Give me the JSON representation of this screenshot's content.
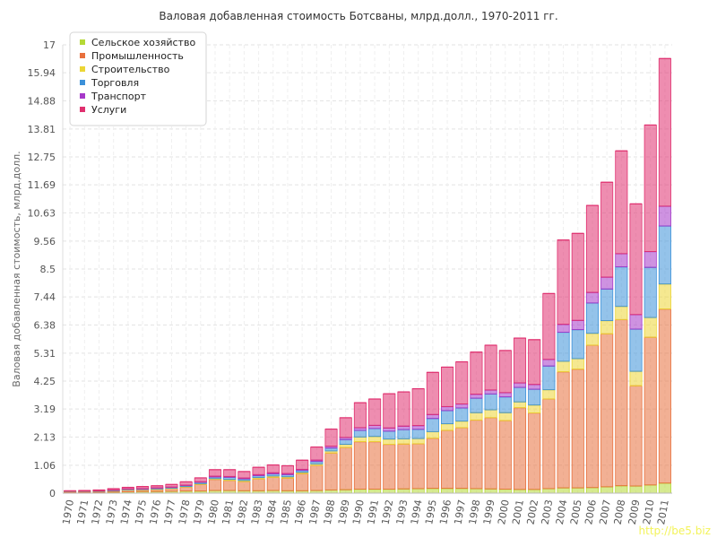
{
  "chart_data": {
    "type": "bar",
    "stacked": true,
    "title": "Валовая добавленная стоимость Ботсваны, млрд.долл., 1970-2011 гг.",
    "ylabel": "Валовая добавленная стоимость, млрд.долл.",
    "xlabel": "",
    "ylim": [
      0,
      17
    ],
    "yticks": [
      "0",
      "1.06",
      "2.13",
      "3.19",
      "4.25",
      "5.31",
      "6.38",
      "7.44",
      "8.5",
      "9.56",
      "10.63",
      "11.69",
      "12.75",
      "13.81",
      "14.88",
      "15.94",
      "17"
    ],
    "grid": true,
    "legend_position": "top-left",
    "categories": [
      "1970",
      "1971",
      "1972",
      "1973",
      "1974",
      "1975",
      "1976",
      "1977",
      "1978",
      "1979",
      "1980",
      "1981",
      "1982",
      "1983",
      "1984",
      "1985",
      "1986",
      "1987",
      "1988",
      "1989",
      "1990",
      "1991",
      "1992",
      "1993",
      "1994",
      "1995",
      "1996",
      "1997",
      "1998",
      "1999",
      "2000",
      "2001",
      "2002",
      "2003",
      "2004",
      "2005",
      "2006",
      "2007",
      "2008",
      "2009",
      "2010",
      "2011"
    ],
    "series": [
      {
        "name": "Сельское хозяйство",
        "color": "#b5d935",
        "values": [
          0.03,
          0.03,
          0.03,
          0.04,
          0.05,
          0.06,
          0.06,
          0.07,
          0.08,
          0.08,
          0.1,
          0.1,
          0.09,
          0.09,
          0.1,
          0.09,
          0.09,
          0.1,
          0.12,
          0.13,
          0.15,
          0.15,
          0.15,
          0.16,
          0.17,
          0.18,
          0.18,
          0.18,
          0.17,
          0.16,
          0.15,
          0.14,
          0.14,
          0.17,
          0.2,
          0.2,
          0.21,
          0.24,
          0.28,
          0.27,
          0.31,
          0.38
        ]
      },
      {
        "name": "Промышленность",
        "color": "#e8703d",
        "values": [
          0.02,
          0.02,
          0.03,
          0.04,
          0.07,
          0.07,
          0.08,
          0.1,
          0.15,
          0.25,
          0.42,
          0.38,
          0.35,
          0.45,
          0.5,
          0.48,
          0.65,
          0.95,
          1.4,
          1.6,
          1.8,
          1.8,
          1.7,
          1.7,
          1.7,
          1.9,
          2.2,
          2.3,
          2.6,
          2.7,
          2.6,
          3.1,
          2.9,
          3.4,
          4.4,
          4.5,
          5.4,
          5.8,
          6.3,
          3.8,
          5.6,
          6.6
        ]
      },
      {
        "name": "Строительство",
        "color": "#ecd635",
        "values": [
          0.01,
          0.01,
          0.01,
          0.01,
          0.01,
          0.01,
          0.02,
          0.02,
          0.02,
          0.03,
          0.03,
          0.04,
          0.04,
          0.05,
          0.05,
          0.05,
          0.05,
          0.06,
          0.08,
          0.12,
          0.18,
          0.2,
          0.2,
          0.2,
          0.2,
          0.25,
          0.25,
          0.25,
          0.28,
          0.3,
          0.3,
          0.22,
          0.3,
          0.35,
          0.4,
          0.4,
          0.45,
          0.5,
          0.5,
          0.55,
          0.75,
          0.95
        ]
      },
      {
        "name": "Торговля",
        "color": "#3c91d9",
        "values": [
          0.01,
          0.01,
          0.01,
          0.02,
          0.02,
          0.02,
          0.03,
          0.03,
          0.04,
          0.05,
          0.06,
          0.08,
          0.06,
          0.07,
          0.08,
          0.08,
          0.07,
          0.09,
          0.11,
          0.18,
          0.25,
          0.3,
          0.3,
          0.35,
          0.35,
          0.5,
          0.5,
          0.5,
          0.55,
          0.6,
          0.6,
          0.55,
          0.6,
          0.9,
          1.1,
          1.1,
          1.15,
          1.2,
          1.5,
          1.6,
          1.9,
          2.2
        ]
      },
      {
        "name": "Транспорт",
        "color": "#a638c9",
        "values": [
          0.0,
          0.0,
          0.0,
          0.01,
          0.01,
          0.01,
          0.01,
          0.01,
          0.01,
          0.02,
          0.03,
          0.03,
          0.03,
          0.04,
          0.04,
          0.04,
          0.04,
          0.05,
          0.07,
          0.08,
          0.1,
          0.12,
          0.12,
          0.13,
          0.14,
          0.15,
          0.15,
          0.15,
          0.15,
          0.15,
          0.16,
          0.17,
          0.18,
          0.25,
          0.3,
          0.35,
          0.4,
          0.45,
          0.5,
          0.55,
          0.6,
          0.75
        ]
      },
      {
        "name": "Услуги",
        "color": "#e0306f",
        "values": [
          0.02,
          0.03,
          0.04,
          0.05,
          0.06,
          0.08,
          0.08,
          0.1,
          0.13,
          0.15,
          0.25,
          0.26,
          0.25,
          0.28,
          0.3,
          0.3,
          0.35,
          0.5,
          0.65,
          0.75,
          0.95,
          1.0,
          1.3,
          1.3,
          1.4,
          1.6,
          1.5,
          1.6,
          1.6,
          1.7,
          1.6,
          1.7,
          1.7,
          2.5,
          3.2,
          3.3,
          3.3,
          3.6,
          3.9,
          4.2,
          4.8,
          5.6
        ]
      }
    ]
  },
  "watermark": "http://be5.biz"
}
